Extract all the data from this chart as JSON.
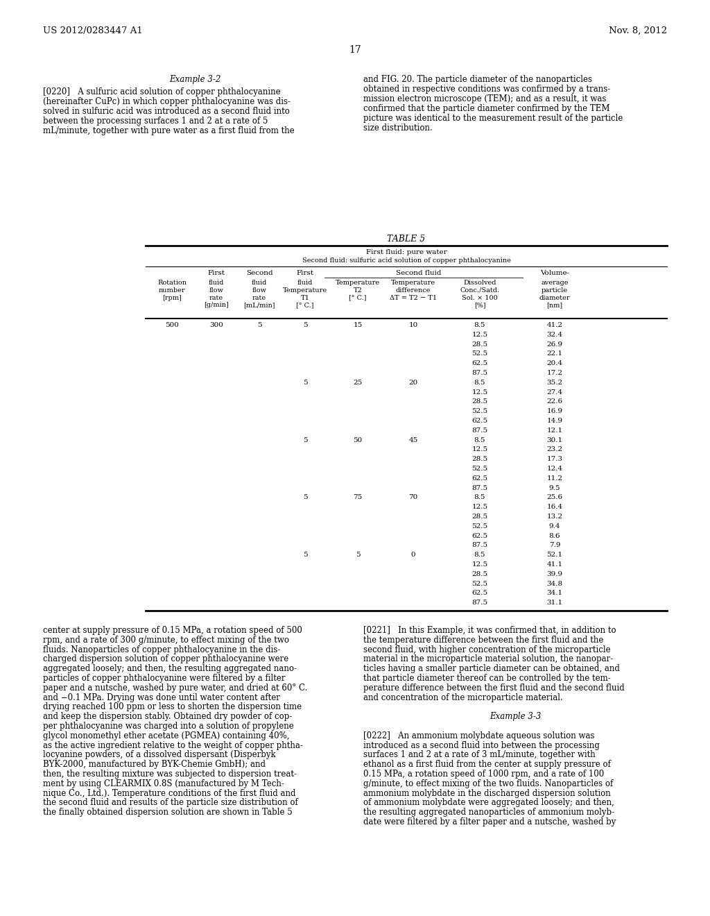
{
  "header_left": "US 2012/0283447 A1",
  "header_right": "Nov. 8, 2012",
  "page_number": "17",
  "table_title": "TABLE 5",
  "table_subheader1": "First fluid: pure water",
  "table_subheader2": "Second fluid: sulfuric acid solution of copper phthalocyanine",
  "bg_color": "#ffffff",
  "text_color": "#000000",
  "table_data": [
    [
      "500",
      "300",
      "5",
      "5",
      "15",
      "10",
      "8.5",
      "41.2"
    ],
    [
      "",
      "",
      "",
      "",
      "",
      "",
      "12.5",
      "32.4"
    ],
    [
      "",
      "",
      "",
      "",
      "",
      "",
      "28.5",
      "26.9"
    ],
    [
      "",
      "",
      "",
      "",
      "",
      "",
      "52.5",
      "22.1"
    ],
    [
      "",
      "",
      "",
      "",
      "",
      "",
      "62.5",
      "20.4"
    ],
    [
      "",
      "",
      "",
      "",
      "",
      "",
      "87.5",
      "17.2"
    ],
    [
      "",
      "",
      "",
      "5",
      "25",
      "20",
      "8.5",
      "35.2"
    ],
    [
      "",
      "",
      "",
      "",
      "",
      "",
      "12.5",
      "27.4"
    ],
    [
      "",
      "",
      "",
      "",
      "",
      "",
      "28.5",
      "22.6"
    ],
    [
      "",
      "",
      "",
      "",
      "",
      "",
      "52.5",
      "16.9"
    ],
    [
      "",
      "",
      "",
      "",
      "",
      "",
      "62.5",
      "14.9"
    ],
    [
      "",
      "",
      "",
      "",
      "",
      "",
      "87.5",
      "12.1"
    ],
    [
      "",
      "",
      "",
      "5",
      "50",
      "45",
      "8.5",
      "30.1"
    ],
    [
      "",
      "",
      "",
      "",
      "",
      "",
      "12.5",
      "23.2"
    ],
    [
      "",
      "",
      "",
      "",
      "",
      "",
      "28.5",
      "17.3"
    ],
    [
      "",
      "",
      "",
      "",
      "",
      "",
      "52.5",
      "12.4"
    ],
    [
      "",
      "",
      "",
      "",
      "",
      "",
      "62.5",
      "11.2"
    ],
    [
      "",
      "",
      "",
      "",
      "",
      "",
      "87.5",
      "9.5"
    ],
    [
      "",
      "",
      "",
      "5",
      "75",
      "70",
      "8.5",
      "25.6"
    ],
    [
      "",
      "",
      "",
      "",
      "",
      "",
      "12.5",
      "16.4"
    ],
    [
      "",
      "",
      "",
      "",
      "",
      "",
      "28.5",
      "13.2"
    ],
    [
      "",
      "",
      "",
      "",
      "",
      "",
      "52.5",
      "9.4"
    ],
    [
      "",
      "",
      "",
      "",
      "",
      "",
      "62.5",
      "8.6"
    ],
    [
      "",
      "",
      "",
      "",
      "",
      "",
      "87.5",
      "7.9"
    ],
    [
      "",
      "",
      "",
      "5",
      "5",
      "0",
      "8.5",
      "52.1"
    ],
    [
      "",
      "",
      "",
      "",
      "",
      "",
      "12.5",
      "41.1"
    ],
    [
      "",
      "",
      "",
      "",
      "",
      "",
      "28.5",
      "39.9"
    ],
    [
      "",
      "",
      "",
      "",
      "",
      "",
      "52.5",
      "34.8"
    ],
    [
      "",
      "",
      "",
      "",
      "",
      "",
      "62.5",
      "34.1"
    ],
    [
      "",
      "",
      "",
      "",
      "",
      "",
      "87.5",
      "31.1"
    ]
  ],
  "left_col_top_lines": [
    "Example 3-2"
  ],
  "left_col_para0220": [
    "[0220]   A sulfuric acid solution of copper phthalocyanine",
    "(hereinafter CuPc) in which copper phthalocyanine was dis-",
    "solved in sulfuric acid was introduced as a second fluid into",
    "between the processing surfaces 1 and 2 at a rate of 5",
    "mL/minute, together with pure water as a first fluid from the"
  ],
  "right_col_top_lines": [
    "and FIG. 20. The particle diameter of the nanoparticles",
    "obtained in respective conditions was confirmed by a trans-",
    "mission electron microscope (TEM); and as a result, it was",
    "confirmed that the particle diameter confirmed by the TEM",
    "picture was identical to the measurement result of the particle",
    "size distribution."
  ],
  "left_col_bottom_lines": [
    "center at supply pressure of 0.15 MPa, a rotation speed of 500",
    "rpm, and a rate of 300 g/minute, to effect mixing of the two",
    "fluids. Nanoparticles of copper phthalocyanine in the dis-",
    "charged dispersion solution of copper phthalocyanine were",
    "aggregated loosely; and then, the resulting aggregated nano-",
    "particles of copper phthalocyanine were filtered by a filter",
    "paper and a nutsche, washed by pure water, and dried at 60° C.",
    "and −0.1 MPa. Drying was done until water content after",
    "drying reached 100 ppm or less to shorten the dispersion time",
    "and keep the dispersion stably. Obtained dry powder of cop-",
    "per phthalocyanine was charged into a solution of propylene",
    "glycol monomethyl ether acetate (PGMEA) containing 40%,",
    "as the active ingredient relative to the weight of copper phtha-",
    "locyanine powders, of a dissolved dispersant (Disperbyk",
    "BYK-2000, manufactured by BYK-Chemie GmbH); and",
    "then, the resulting mixture was subjected to dispersion treat-",
    "ment by using CLEARMIX 0.8S (manufactured by M Tech-",
    "nique Co., Ltd.). Temperature conditions of the first fluid and",
    "the second fluid and results of the particle size distribution of",
    "the finally obtained dispersion solution are shown in Table 5"
  ],
  "right_col_bottom_lines": [
    "[0221]   In this Example, it was confirmed that, in addition to",
    "the temperature difference between the first fluid and the",
    "second fluid, with higher concentration of the microparticle",
    "material in the microparticle material solution, the nanopar-",
    "ticles having a smaller particle diameter can be obtained, and",
    "that particle diameter thereof can be controlled by the tem-",
    "perature difference between the first fluid and the second fluid",
    "and concentration of the microparticle material.",
    "",
    "Example 3-3",
    "",
    "[0222]   An ammonium molybdate aqueous solution was",
    "introduced as a second fluid into between the processing",
    "surfaces 1 and 2 at a rate of 3 mL/minute, together with",
    "ethanol as a first fluid from the center at supply pressure of",
    "0.15 MPa, a rotation speed of 1000 rpm, and a rate of 100",
    "g/minute, to effect mixing of the two fluids. Nanoparticles of",
    "ammonium molybdate in the discharged dispersion solution",
    "of ammonium molybdate were aggregated loosely; and then,",
    "the resulting aggregated nanoparticles of ammonium molyb-",
    "date were filtered by a filter paper and a nutsche, washed by"
  ]
}
